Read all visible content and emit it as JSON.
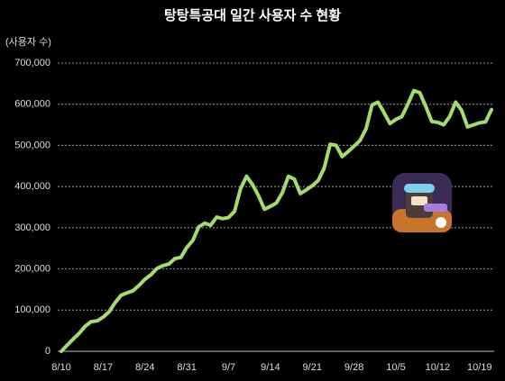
{
  "chart_data": {
    "type": "line",
    "title": "탕탕특공대 일간 사용자 수 현황",
    "y_label": "(사용자 수)",
    "categories": [
      "8/10",
      null,
      null,
      null,
      null,
      null,
      null,
      "8/17",
      null,
      null,
      null,
      null,
      null,
      null,
      "8/24",
      null,
      null,
      null,
      null,
      null,
      null,
      "8/31",
      null,
      null,
      null,
      null,
      null,
      null,
      "9/7",
      null,
      null,
      null,
      null,
      null,
      null,
      "9/14",
      null,
      null,
      null,
      null,
      null,
      null,
      "9/21",
      null,
      null,
      null,
      null,
      null,
      null,
      "9/28",
      null,
      null,
      null,
      null,
      null,
      null,
      "10/5",
      null,
      null,
      null,
      null,
      null,
      null,
      "10/12",
      null,
      null,
      null,
      null,
      null,
      null,
      "10/19",
      null,
      null
    ],
    "values": [
      0,
      15000,
      30000,
      44000,
      61000,
      72000,
      74000,
      83000,
      96000,
      118000,
      136000,
      142000,
      147000,
      160000,
      175000,
      186000,
      201000,
      208000,
      212000,
      225000,
      228000,
      252000,
      269000,
      302000,
      311000,
      306000,
      326000,
      322000,
      325000,
      340000,
      395000,
      425000,
      405000,
      378000,
      345000,
      352000,
      360000,
      385000,
      425000,
      418000,
      383000,
      392000,
      402000,
      415000,
      445000,
      503000,
      500000,
      473000,
      485000,
      498000,
      512000,
      540000,
      598000,
      605000,
      580000,
      553000,
      563000,
      570000,
      600000,
      633000,
      628000,
      595000,
      558000,
      556000,
      550000,
      570000,
      605000,
      585000,
      545000,
      550000,
      555000,
      557000,
      587000
    ],
    "color": "#a4dc6c",
    "ylim": [
      0,
      700000
    ],
    "yticks": [
      0,
      {
        "value": 100000,
        "label": "100,000"
      },
      {
        "value": 200000,
        "label": "200,000"
      },
      {
        "value": 300000,
        "label": "300,000"
      },
      {
        "value": 400000,
        "label": "400,000"
      },
      {
        "value": 500000,
        "label": "500,000"
      },
      {
        "value": 600000,
        "label": "600,000"
      },
      {
        "value": 700000,
        "label": "700,000"
      }
    ],
    "grid": true
  }
}
